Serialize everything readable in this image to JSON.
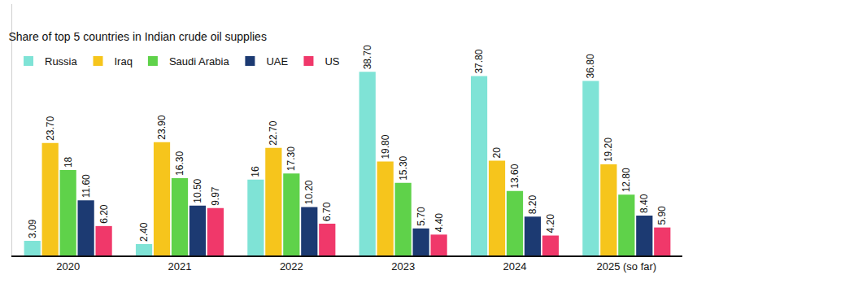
{
  "chart_data": {
    "type": "bar",
    "title": "Share of top 5 countries in Indian crude oil supplies",
    "categories": [
      "2020",
      "2021",
      "2022",
      "2023",
      "2024",
      "2025 (so far)"
    ],
    "series": [
      {
        "name": "Russia",
        "color": "#7fe3d6",
        "values": [
          3.09,
          2.4,
          16,
          38.7,
          37.8,
          36.8
        ],
        "value_labels": [
          "3.09",
          "2.40",
          "16",
          "38.70",
          "37.80",
          "36.80"
        ]
      },
      {
        "name": "Iraq",
        "color": "#f6c51c",
        "values": [
          23.7,
          23.9,
          22.7,
          19.8,
          20,
          19.2
        ],
        "value_labels": [
          "23.70",
          "23.90",
          "22.70",
          "19.80",
          "20",
          "19.20"
        ]
      },
      {
        "name": "Saudi Arabia",
        "color": "#5fd24a",
        "values": [
          18,
          16.3,
          17.3,
          15.3,
          13.6,
          12.8
        ],
        "value_labels": [
          "18",
          "16.30",
          "17.30",
          "15.30",
          "13.60",
          "12.80"
        ]
      },
      {
        "name": "UAE",
        "color": "#1c3a72",
        "values": [
          11.6,
          10.5,
          10.2,
          5.7,
          8.2,
          8.4
        ],
        "value_labels": [
          "11.60",
          "10.50",
          "10.20",
          "5.70",
          "8.20",
          "8.40"
        ]
      },
      {
        "name": "US",
        "color": "#f0386a",
        "values": [
          6.2,
          9.97,
          6.7,
          4.4,
          4.2,
          5.9
        ],
        "value_labels": [
          "6.20",
          "9.97",
          "6.70",
          "4.40",
          "4.20",
          "5.90"
        ]
      }
    ],
    "ylim": [
      0,
      53
    ],
    "yticks": [],
    "grid": false,
    "legend": "top-left",
    "data_labels": true,
    "tick_labels": "x"
  }
}
